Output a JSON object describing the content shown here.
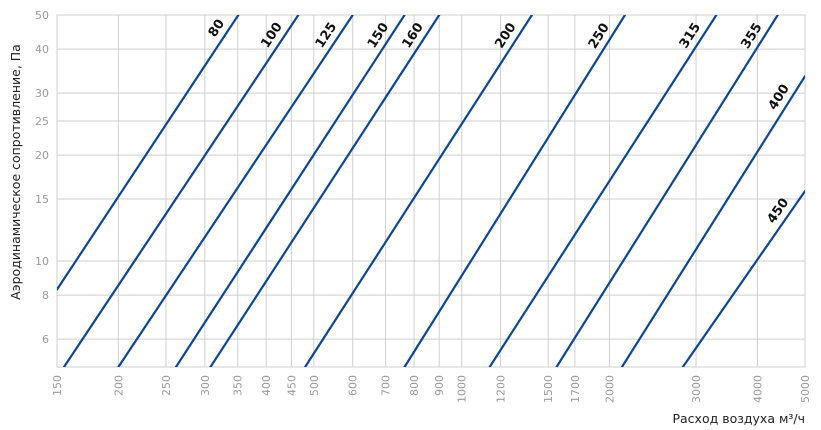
{
  "chart_data": {
    "type": "line",
    "xlabel": "Расход воздуха м³/ч",
    "ylabel": "Аэродинамическое сопротивление, Па",
    "x_scale": "log",
    "y_scale": "log",
    "xlim": [
      150,
      5000
    ],
    "ylim": [
      5,
      50
    ],
    "grid": true,
    "x_ticks": [
      150,
      200,
      250,
      300,
      350,
      400,
      450,
      500,
      600,
      700,
      800,
      900,
      1000,
      1200,
      1500,
      1700,
      2000,
      3000,
      4000,
      5000
    ],
    "x_tick_labels": [
      "150",
      "200",
      "250",
      "300",
      "350",
      "400",
      "450",
      "500",
      "600",
      "700",
      "800",
      "900",
      "1000",
      "1200",
      "1500",
      "1700",
      "2000",
      "3000",
      "4000",
      "5000"
    ],
    "y_ticks": [
      6,
      8,
      10,
      15,
      20,
      25,
      30,
      40,
      50
    ],
    "y_tick_labels": [
      "6",
      "8",
      "10",
      "15",
      "20",
      "25",
      "30",
      "40",
      "50"
    ],
    "series": [
      {
        "name": "80",
        "points": [
          [
            150,
            8.3
          ],
          [
            351,
            50
          ]
        ]
      },
      {
        "name": "100",
        "points": [
          [
            155,
            5
          ],
          [
            465,
            50
          ]
        ]
      },
      {
        "name": "125",
        "points": [
          [
            200,
            5
          ],
          [
            600,
            50
          ]
        ]
      },
      {
        "name": "150",
        "points": [
          [
            262,
            5
          ],
          [
            765,
            50
          ]
        ]
      },
      {
        "name": "160",
        "points": [
          [
            308,
            5
          ],
          [
            900,
            50
          ]
        ]
      },
      {
        "name": "200",
        "points": [
          [
            480,
            5
          ],
          [
            1390,
            50
          ]
        ]
      },
      {
        "name": "250",
        "points": [
          [
            765,
            5
          ],
          [
            2150,
            50
          ]
        ]
      },
      {
        "name": "315",
        "points": [
          [
            1140,
            5
          ],
          [
            3300,
            50
          ]
        ]
      },
      {
        "name": "355",
        "points": [
          [
            1560,
            5
          ],
          [
            4400,
            50
          ]
        ]
      },
      {
        "name": "400",
        "points": [
          [
            2120,
            5
          ],
          [
            5000,
            33.5
          ]
        ]
      },
      {
        "name": "450",
        "points": [
          [
            2820,
            5
          ],
          [
            5000,
            15.8
          ]
        ]
      }
    ],
    "line_color": "#0f4595",
    "grid_color": "#cfcfcf"
  }
}
